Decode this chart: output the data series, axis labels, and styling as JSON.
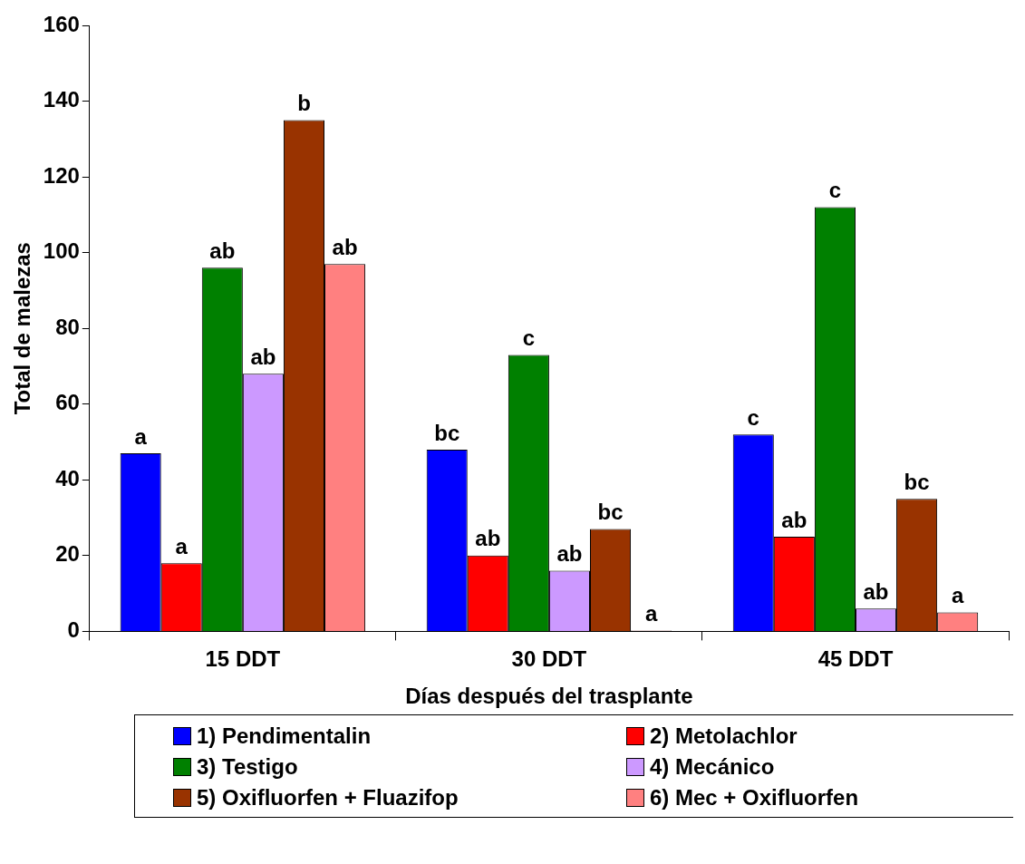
{
  "chart_data": {
    "type": "bar",
    "xlabel": "Días después del trasplante",
    "ylabel": "Total de malezas",
    "categories": [
      "15 DDT",
      "30 DDT",
      "45 DDT"
    ],
    "series": [
      {
        "name": "1) Pendimentalin",
        "color": "#0000ff",
        "values": [
          47,
          48,
          52
        ],
        "value_labels": [
          "a",
          "bc",
          "c"
        ]
      },
      {
        "name": "2) Metolachlor",
        "color": "#ff0000",
        "values": [
          18,
          20,
          25
        ],
        "value_labels": [
          "a",
          "ab",
          "ab"
        ]
      },
      {
        "name": "3) Testigo",
        "color": "#008000",
        "values": [
          96,
          73,
          112
        ],
        "value_labels": [
          "ab",
          "c",
          "c"
        ]
      },
      {
        "name": "4) Mecánico",
        "color": "#cc99ff",
        "values": [
          68,
          16,
          6
        ],
        "value_labels": [
          "ab",
          "ab",
          "ab"
        ]
      },
      {
        "name": "5) Oxifluorfen + Fluazifop",
        "color": "#993300",
        "values": [
          135,
          27,
          35
        ],
        "value_labels": [
          "b",
          "bc",
          "bc"
        ]
      },
      {
        "name": "6) Mec + Oxifluorfen",
        "color": "#ff8080",
        "values": [
          97,
          0,
          5
        ],
        "value_labels": [
          "ab",
          "a",
          "a"
        ]
      }
    ],
    "ylim": [
      0,
      160
    ],
    "yticks": [
      0,
      20,
      40,
      60,
      80,
      100,
      120,
      140,
      160
    ],
    "grid": false,
    "legend": "bottom"
  }
}
